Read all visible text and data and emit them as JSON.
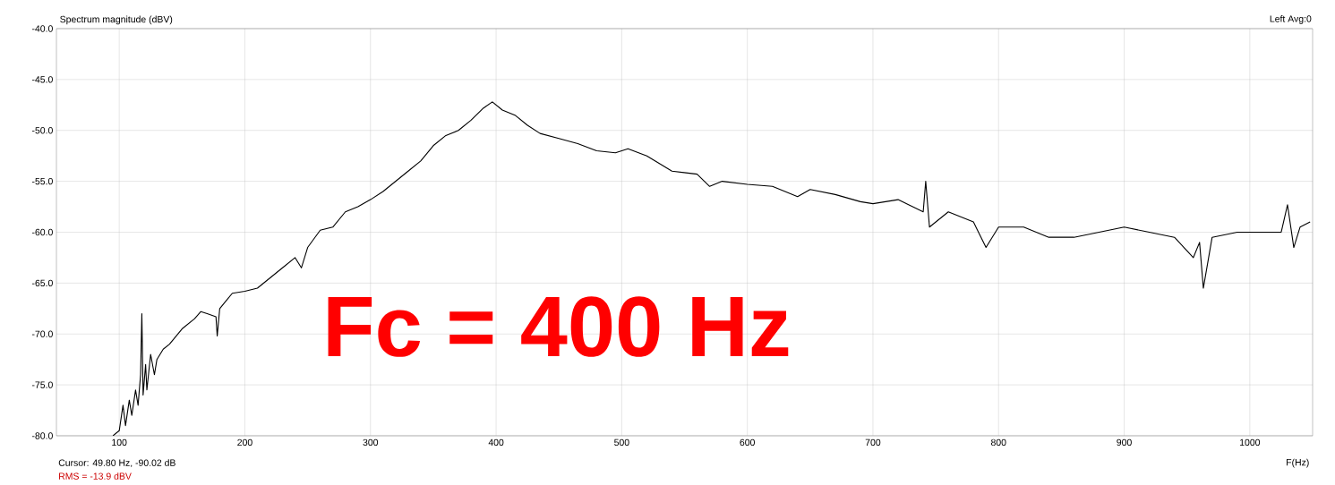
{
  "chart_data": {
    "type": "line",
    "ylabel": "Spectrum magnitude (dBV)",
    "xlabel": "F(Hz)",
    "annotations": [
      "Left  Avg:0",
      "Cursor: 49.80 Hz, -90.02 dB",
      "RMS =  -13.9 dBV",
      "Fc = 400 Hz"
    ],
    "xlim": [
      50,
      1050
    ],
    "ylim": [
      -80,
      -40
    ],
    "xticks": [
      100,
      200,
      300,
      400,
      500,
      600,
      700,
      800,
      900,
      1000
    ],
    "yticks": [
      {
        "value": -80,
        "label": "-80.0"
      },
      {
        "value": -75,
        "label": "-75.0"
      },
      {
        "value": -70,
        "label": "-70.0"
      },
      {
        "value": -65,
        "label": "-65.0"
      },
      {
        "value": -60,
        "label": "-60.0"
      },
      {
        "value": -55,
        "label": "-55.0"
      },
      {
        "value": -50,
        "label": "-50.0"
      },
      {
        "value": -45,
        "label": "-45.0"
      },
      {
        "value": -40,
        "label": "-40.0"
      }
    ],
    "grid": true,
    "marker": "none",
    "line_style": "solid",
    "series": [
      {
        "color": "#000000",
        "x": [
          95,
          100,
          103,
          105,
          108,
          110,
          113,
          115,
          117,
          118,
          119,
          121,
          122,
          125,
          128,
          130,
          135,
          140,
          150,
          160,
          165,
          170,
          177,
          178,
          180,
          190,
          200,
          210,
          220,
          230,
          240,
          245,
          250,
          260,
          270,
          280,
          290,
          300,
          310,
          320,
          330,
          340,
          350,
          360,
          370,
          380,
          390,
          397,
          405,
          415,
          425,
          435,
          450,
          465,
          480,
          495,
          505,
          520,
          540,
          560,
          570,
          580,
          600,
          620,
          640,
          650,
          670,
          690,
          700,
          720,
          740,
          742,
          745,
          760,
          780,
          790,
          800,
          820,
          840,
          860,
          880,
          900,
          920,
          940,
          955,
          960,
          963,
          970,
          990,
          1010,
          1025,
          1030,
          1035,
          1040,
          1048
        ],
        "values": [
          -80,
          -79.5,
          -77,
          -79,
          -76.5,
          -78,
          -75.5,
          -77,
          -74,
          -68,
          -76,
          -73,
          -75.5,
          -72,
          -74,
          -72.5,
          -71.5,
          -71,
          -69.5,
          -68.5,
          -67.8,
          -68,
          -68.3,
          -70.2,
          -67.5,
          -66,
          -65.8,
          -65.5,
          -64.5,
          -63.5,
          -62.5,
          -63.5,
          -61.5,
          -59.8,
          -59.5,
          -58,
          -57.5,
          -56.8,
          -56,
          -55,
          -54,
          -53,
          -51.5,
          -50.5,
          -50,
          -49,
          -47.8,
          -47.2,
          -48,
          -48.5,
          -49.5,
          -50.3,
          -50.8,
          -51.3,
          -52,
          -52.2,
          -51.8,
          -52.5,
          -54,
          -54.3,
          -55.5,
          -55,
          -55.3,
          -55.5,
          -56.5,
          -55.8,
          -56.3,
          -57,
          -57.2,
          -56.8,
          -58,
          -55,
          -59.5,
          -58,
          -59,
          -61.5,
          -59.5,
          -59.5,
          -60.5,
          -60.5,
          -60,
          -59.5,
          -60,
          -60.5,
          -62.5,
          -61,
          -65.5,
          -60.5,
          -60,
          -60,
          -60,
          -57.3,
          -61.5,
          -59.5,
          -59
        ]
      }
    ]
  }
}
